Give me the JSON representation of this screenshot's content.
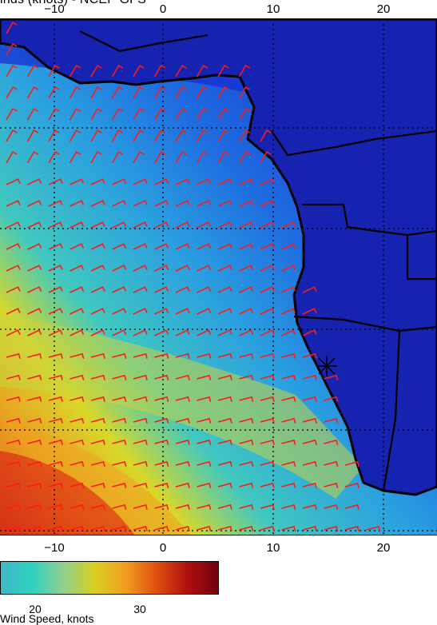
{
  "title": "inds (knots) - NCEP GFS",
  "top_ticks": [
    "−10",
    "0",
    "10",
    "20"
  ],
  "bottom_ticks": [
    "−10",
    "0",
    "10",
    "20"
  ],
  "colorbar": {
    "ticks": [
      "20",
      "30"
    ],
    "label": "Wind Speed, knots",
    "colors": [
      "#3fb8c8",
      "#2fd0c0",
      "#8fd090",
      "#d8d020",
      "#f0a020",
      "#e05010",
      "#b01010",
      "#700010"
    ]
  },
  "map": {
    "lon_range": [
      -15,
      25
    ],
    "lat_range": [
      -35,
      12
    ],
    "ocean_colors": {
      "calm": "#1a2fd0",
      "low": "#1c7fe0",
      "mid": "#34c0c8",
      "strong": "#d8d82a",
      "max": "#c01818"
    },
    "land_color": "#1622b0",
    "barb_color": "#ff1a1a",
    "grid_lines_lon": [
      -10,
      0,
      10,
      20
    ],
    "grid_lines_lat": [
      10,
      0,
      -10,
      -20,
      -30
    ]
  }
}
